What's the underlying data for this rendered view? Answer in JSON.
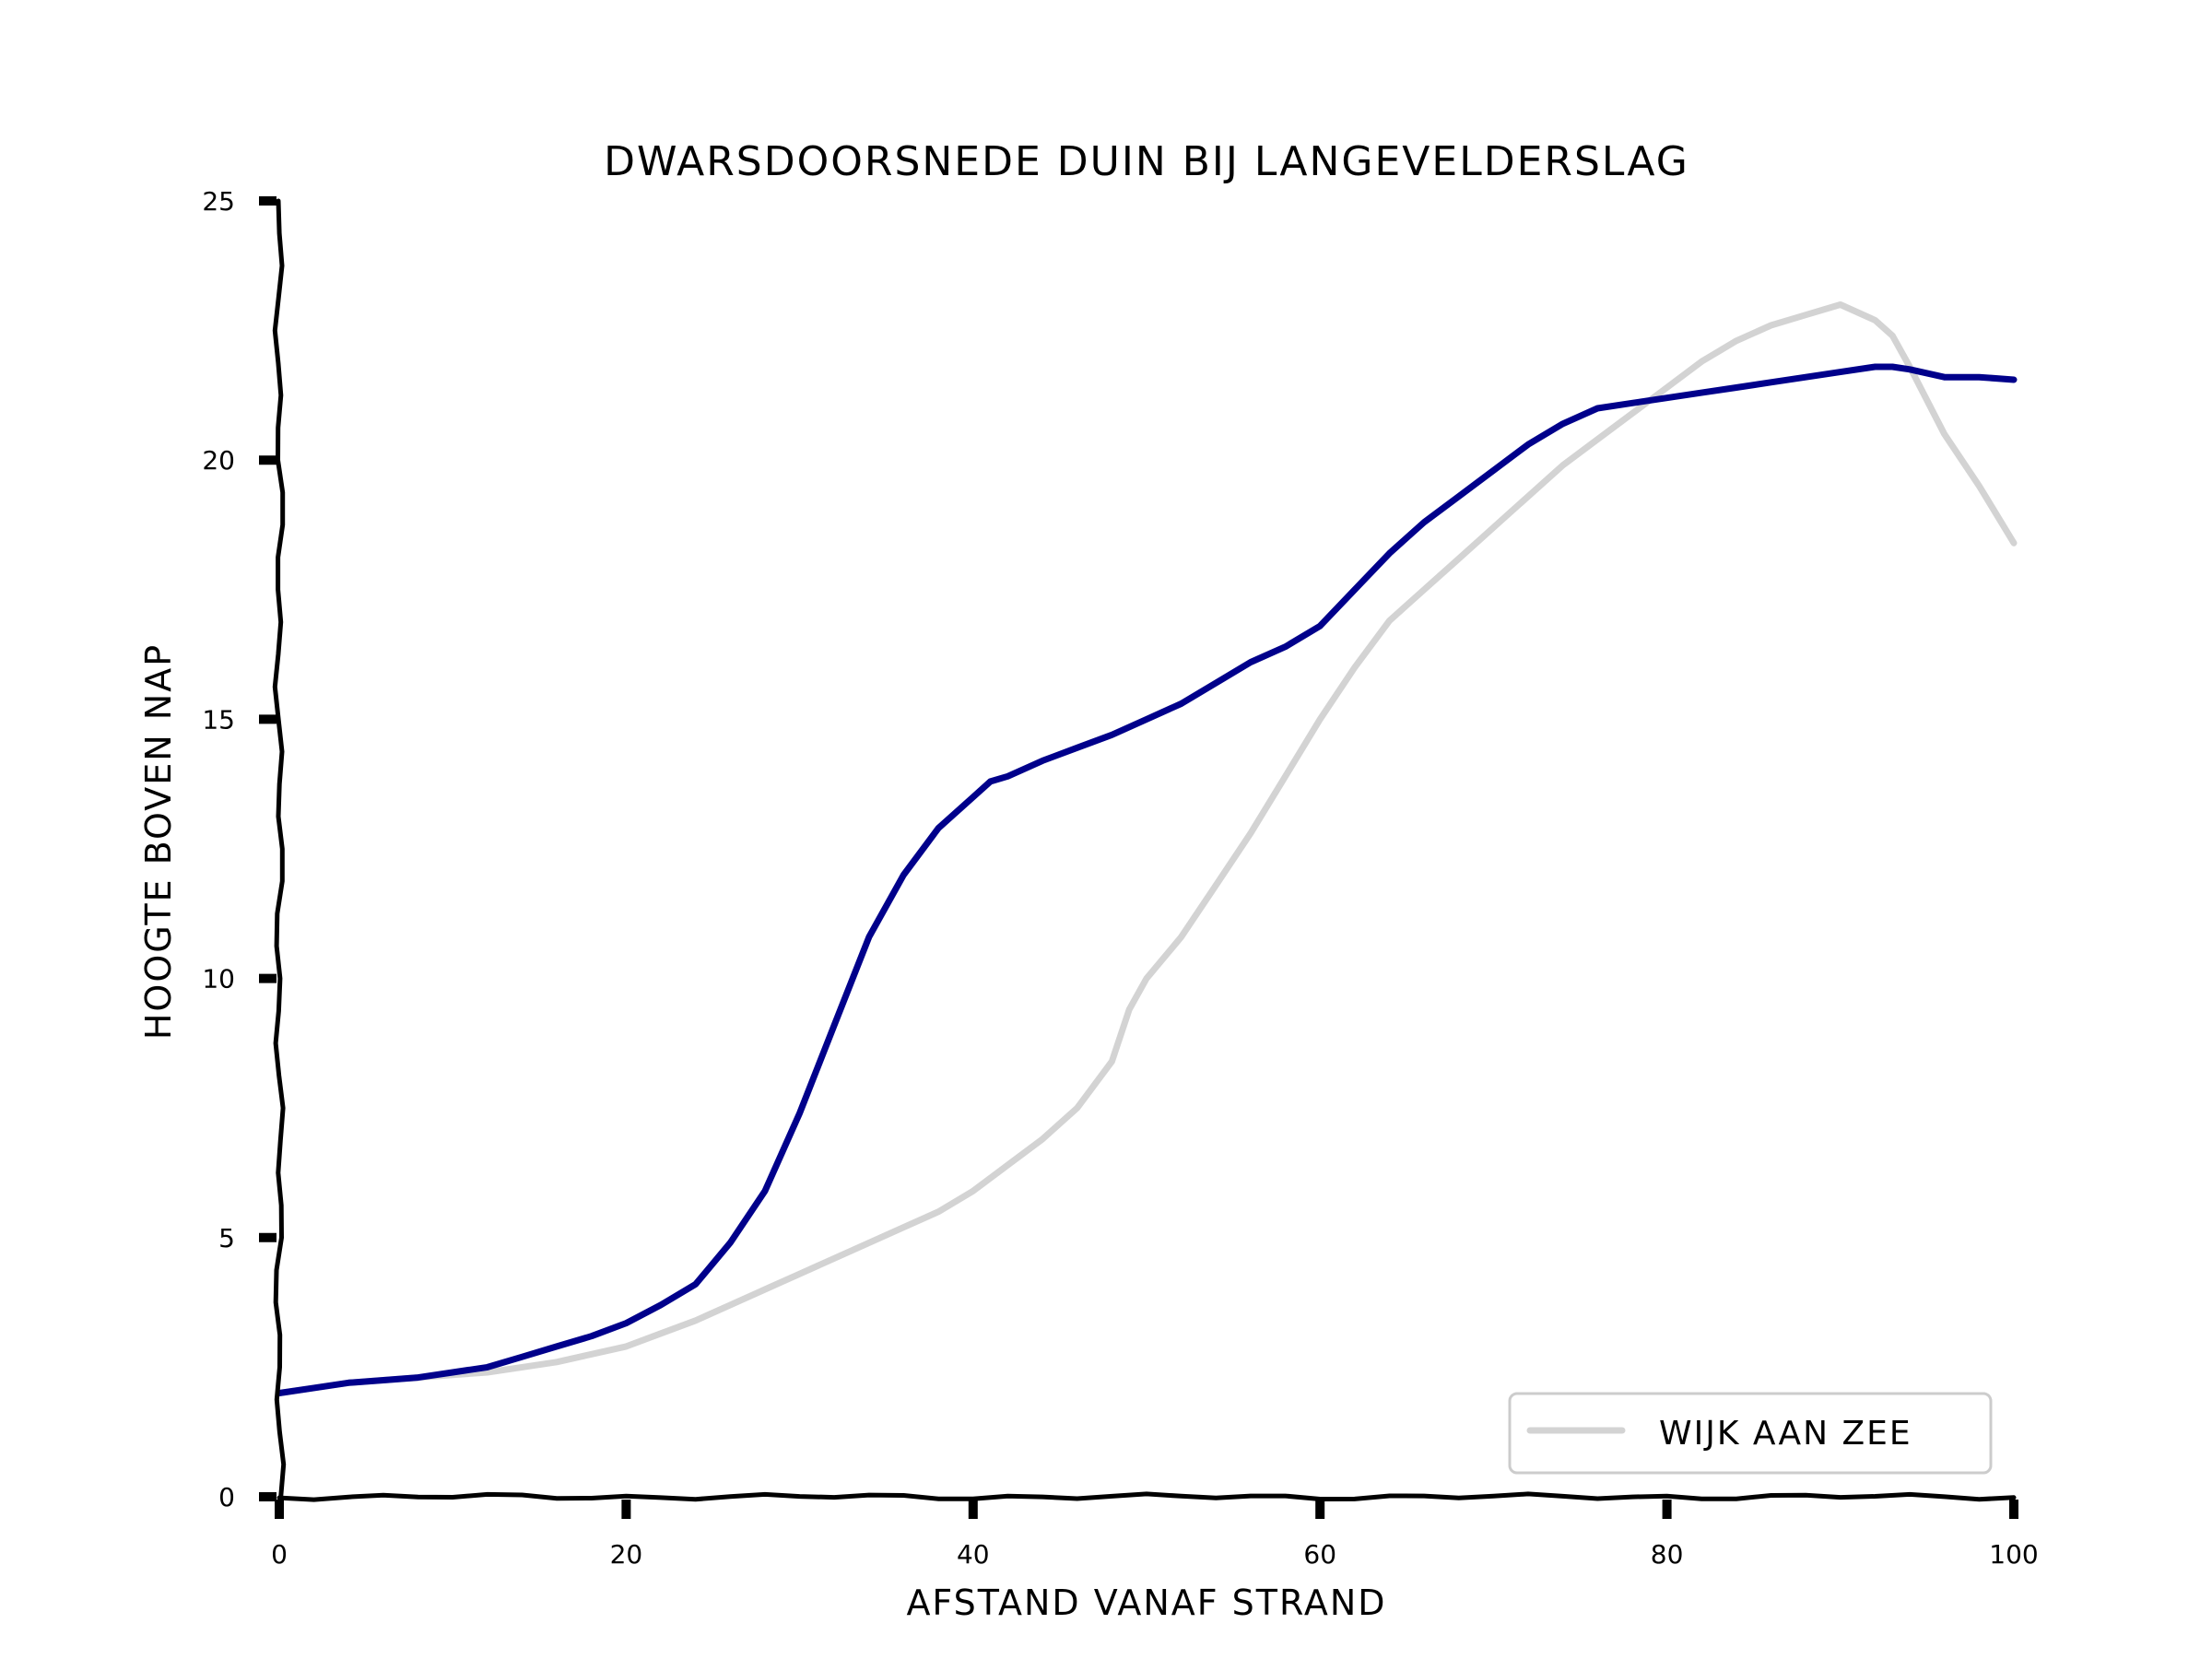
{
  "chart_data": {
    "type": "line",
    "title": "DWARSDOORSNEDE DUIN BIJ LANGEVELDERSLAG",
    "xlabel": "AFSTAND VANAF STRAND",
    "ylabel": "HOOGTE BOVEN NAP",
    "xlim": [
      0,
      100
    ],
    "ylim": [
      0,
      25
    ],
    "xticks": [
      0,
      20,
      40,
      60,
      80,
      100
    ],
    "yticks": [
      0,
      5,
      10,
      15,
      20,
      25
    ],
    "grid": false,
    "legend_position": "bottom-right",
    "series": [
      {
        "color": "#00008b",
        "x": [
          0,
          2,
          4,
          6,
          8,
          10,
          12,
          14,
          16,
          18,
          20,
          22,
          24,
          26,
          28,
          30,
          32,
          34,
          36,
          38,
          40,
          41,
          42,
          44,
          46,
          48,
          50,
          52,
          54,
          56,
          58,
          60,
          62,
          64,
          66,
          68,
          70,
          72,
          74,
          76,
          78,
          80,
          82,
          84,
          86,
          88,
          90,
          92,
          93,
          94,
          96,
          98,
          100
        ],
        "values": [
          2.0,
          2.1,
          2.2,
          2.25,
          2.3,
          2.4,
          2.5,
          2.7,
          2.9,
          3.1,
          3.35,
          3.7,
          4.1,
          4.9,
          5.9,
          7.4,
          9.1,
          10.8,
          12.0,
          12.9,
          13.5,
          13.8,
          13.9,
          14.2,
          14.45,
          14.7,
          15.0,
          15.3,
          15.7,
          16.1,
          16.4,
          16.8,
          17.5,
          18.2,
          18.8,
          19.3,
          19.8,
          20.3,
          20.7,
          21.0,
          21.1,
          21.2,
          21.3,
          21.4,
          21.5,
          21.6,
          21.7,
          21.8,
          21.8,
          21.75,
          21.6,
          21.6,
          21.55
        ]
      },
      {
        "name": "WIJK AAN ZEE",
        "color": "#d3d3d3",
        "x": [
          0,
          2,
          4,
          6,
          8,
          10,
          12,
          14,
          16,
          18,
          20,
          22,
          24,
          26,
          28,
          30,
          32,
          34,
          36,
          38,
          40,
          42,
          44,
          46,
          48,
          49,
          50,
          52,
          54,
          56,
          58,
          60,
          62,
          64,
          66,
          68,
          70,
          72,
          74,
          76,
          78,
          80,
          82,
          84,
          86,
          88,
          90,
          92,
          93,
          94,
          96,
          98,
          100
        ],
        "values": [
          2.0,
          2.1,
          2.2,
          2.25,
          2.3,
          2.35,
          2.4,
          2.5,
          2.6,
          2.75,
          2.9,
          3.15,
          3.4,
          3.7,
          4.0,
          4.3,
          4.6,
          4.9,
          5.2,
          5.5,
          5.9,
          6.4,
          6.9,
          7.5,
          8.4,
          9.4,
          10.0,
          10.8,
          11.8,
          12.8,
          13.9,
          15.0,
          16.0,
          16.9,
          17.5,
          18.1,
          18.7,
          19.3,
          19.9,
          20.4,
          20.9,
          21.4,
          21.9,
          22.3,
          22.6,
          22.8,
          23.0,
          22.7,
          22.4,
          21.8,
          20.5,
          19.5,
          18.4
        ]
      }
    ]
  }
}
